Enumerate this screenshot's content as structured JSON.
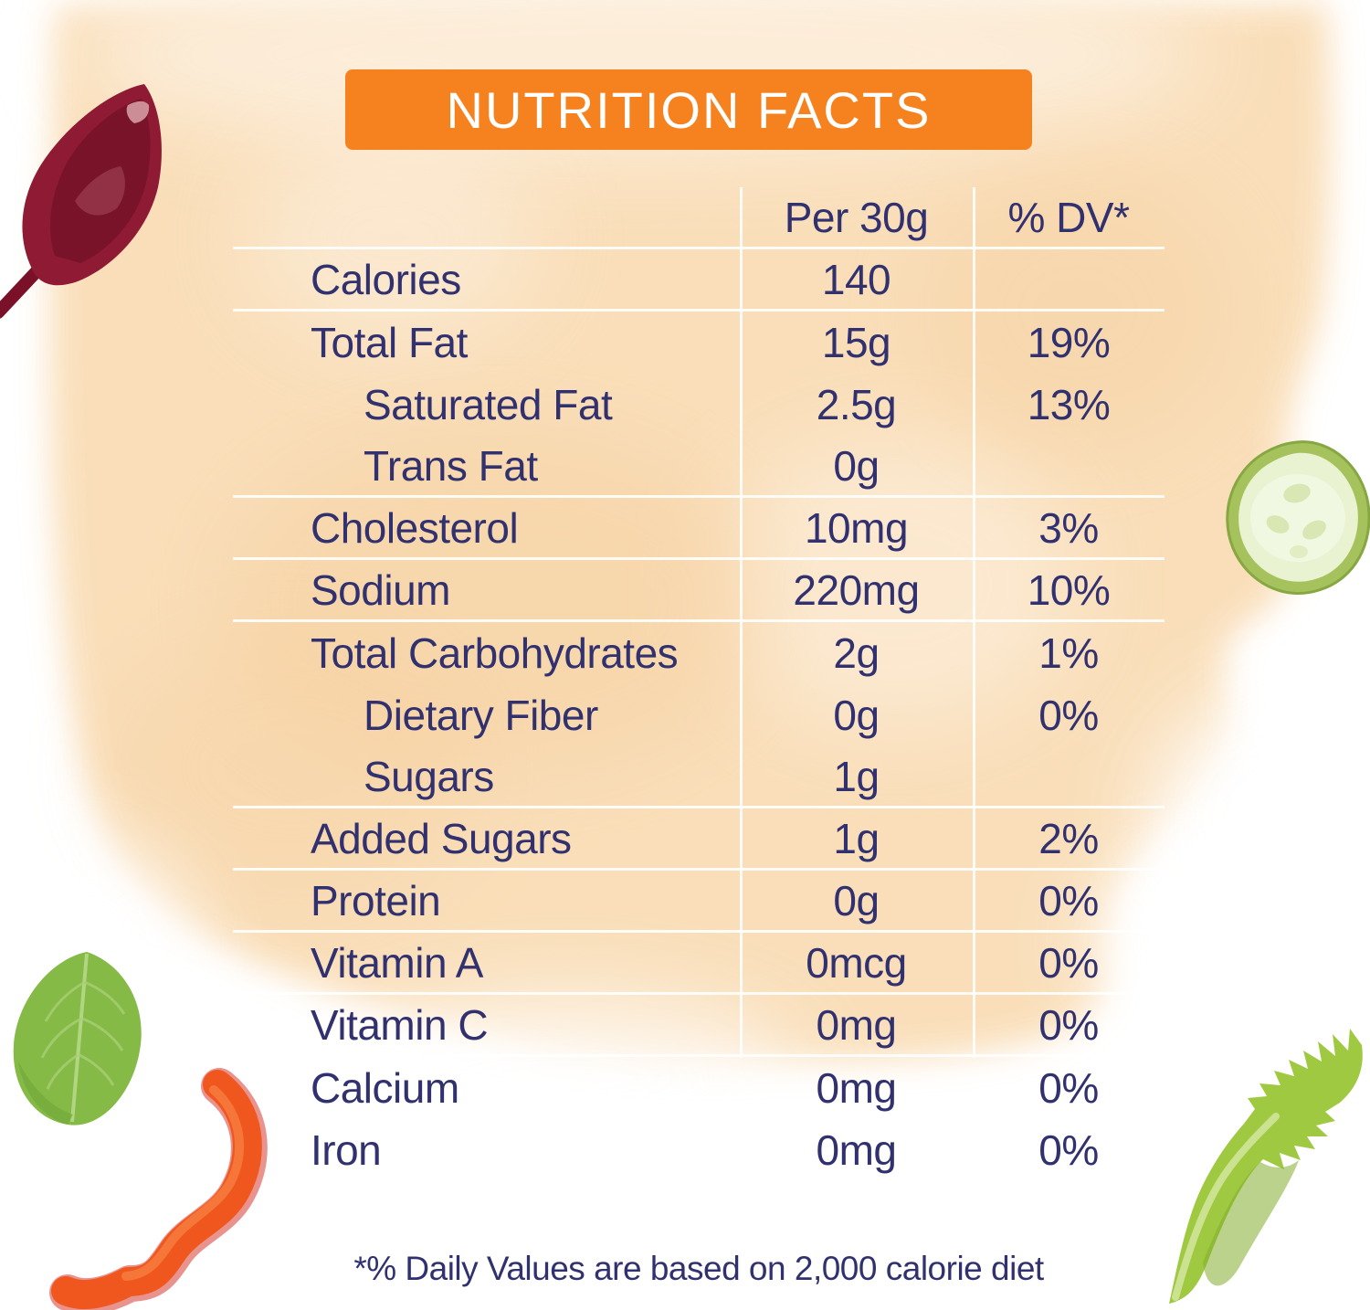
{
  "title_banner": {
    "label": "NUTRITION FACTS",
    "bg_color": "#F5821E",
    "text_color": "#FFFFFF"
  },
  "table": {
    "text_color": "#31316F",
    "columns": {
      "amount_header": "Per 30g",
      "dv_header": "% DV*"
    },
    "rows": [
      {
        "label": "Calories",
        "amount": "140",
        "dv": "",
        "indent": false,
        "line_below": true
      },
      {
        "label": "Total Fat",
        "amount": "15g",
        "dv": "19%",
        "indent": false,
        "line_below": false
      },
      {
        "label": "Saturated Fat",
        "amount": "2.5g",
        "dv": "13%",
        "indent": true,
        "line_below": false
      },
      {
        "label": "Trans Fat",
        "amount": "0g",
        "dv": "",
        "indent": true,
        "line_below": true
      },
      {
        "label": "Cholesterol",
        "amount": "10mg",
        "dv": "3%",
        "indent": false,
        "line_below": true
      },
      {
        "label": "Sodium",
        "amount": "220mg",
        "dv": "10%",
        "indent": false,
        "line_below": true
      },
      {
        "label": "Total Carbohydrates",
        "amount": "2g",
        "dv": "1%",
        "indent": false,
        "line_below": false
      },
      {
        "label": "Dietary Fiber",
        "amount": "0g",
        "dv": "0%",
        "indent": true,
        "line_below": false
      },
      {
        "label": "Sugars",
        "amount": "1g",
        "dv": "",
        "indent": true,
        "line_below": true
      },
      {
        "label": "Added Sugars",
        "amount": "1g",
        "dv": "2%",
        "indent": false,
        "line_below": true
      },
      {
        "label": "Protein",
        "amount": "0g",
        "dv": "0%",
        "indent": false,
        "line_below": true
      },
      {
        "label": "Vitamin A",
        "amount": "0mcg",
        "dv": "0%",
        "indent": false,
        "line_below": true
      },
      {
        "label": "Vitamin C",
        "amount": "0mg",
        "dv": "0%",
        "indent": false,
        "line_below": true
      },
      {
        "label": "Calcium",
        "amount": "0mg",
        "dv": "0%",
        "indent": false,
        "line_below": false
      },
      {
        "label": "Iron",
        "amount": "0mg",
        "dv": "0%",
        "indent": false,
        "line_below": false
      }
    ]
  },
  "footnote": "*% Daily Values are based on 2,000 calorie diet",
  "decorations": [
    "beet-leaf",
    "cucumber-slice",
    "basil-leaf",
    "pepper-slice",
    "lettuce-leaf"
  ],
  "palette": {
    "wash_peach": "#F9DCB4",
    "navy_text": "#31316F",
    "banner_orange": "#F5821E",
    "divider_white": "#FFFFFF"
  }
}
